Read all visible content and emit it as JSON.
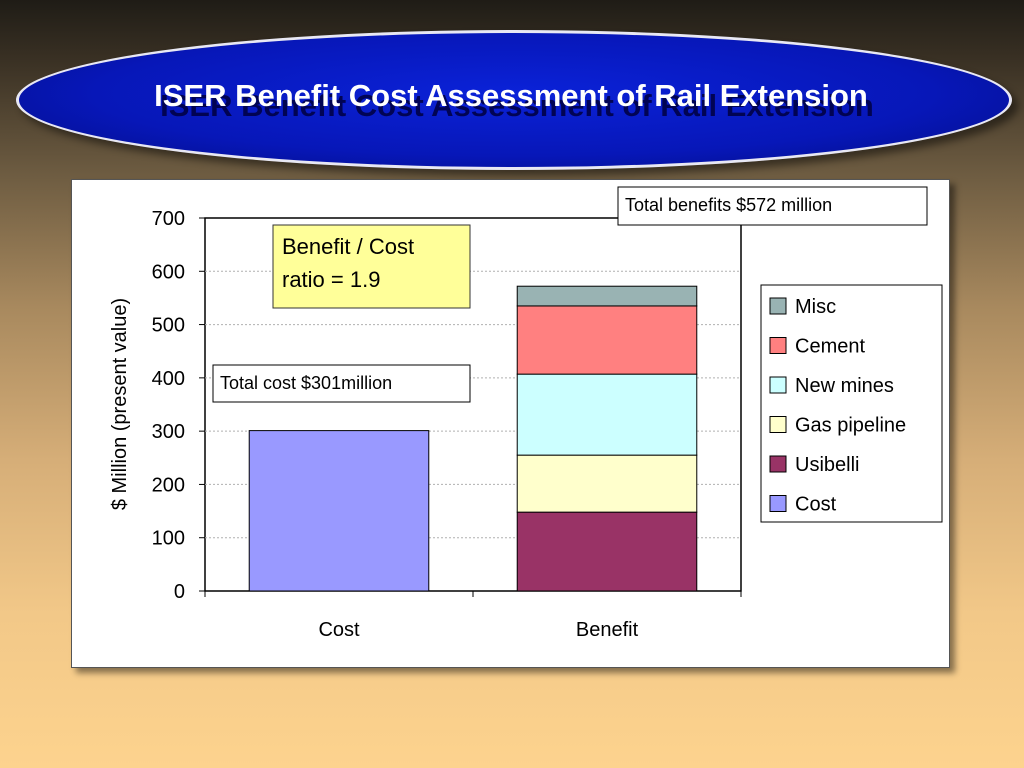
{
  "slide": {
    "title": "ISER Benefit Cost Assessment of Rail Extension"
  },
  "chart_data": {
    "type": "bar",
    "stacked": true,
    "categories": [
      "Cost",
      "Benefit"
    ],
    "series": [
      {
        "name": "Cost",
        "values": [
          301,
          0
        ],
        "color": "#9999ff"
      },
      {
        "name": "Usibelli",
        "values": [
          0,
          148
        ],
        "color": "#993366"
      },
      {
        "name": "Gas pipeline",
        "values": [
          0,
          107
        ],
        "color": "#ffffcc"
      },
      {
        "name": "New mines",
        "values": [
          0,
          152
        ],
        "color": "#ccffff"
      },
      {
        "name": "Cement",
        "values": [
          0,
          128
        ],
        "color": "#ff8080"
      },
      {
        "name": "Misc",
        "values": [
          0,
          37
        ],
        "color": "#99b3b3"
      }
    ],
    "legend_order": [
      "Misc",
      "Cement",
      "New mines",
      "Gas pipeline",
      "Usibelli",
      "Cost"
    ],
    "ylabel": "$ Million (present value)",
    "ylim": [
      0,
      700
    ],
    "yticks": [
      0,
      100,
      200,
      300,
      400,
      500,
      600,
      700
    ],
    "grid": true,
    "legend_position": "right",
    "annotations": {
      "ratio_line1": "Benefit / Cost",
      "ratio_line2": "ratio = 1.9",
      "total_cost": "Total cost $301million",
      "total_benefits": "Total benefits $572 million"
    }
  }
}
